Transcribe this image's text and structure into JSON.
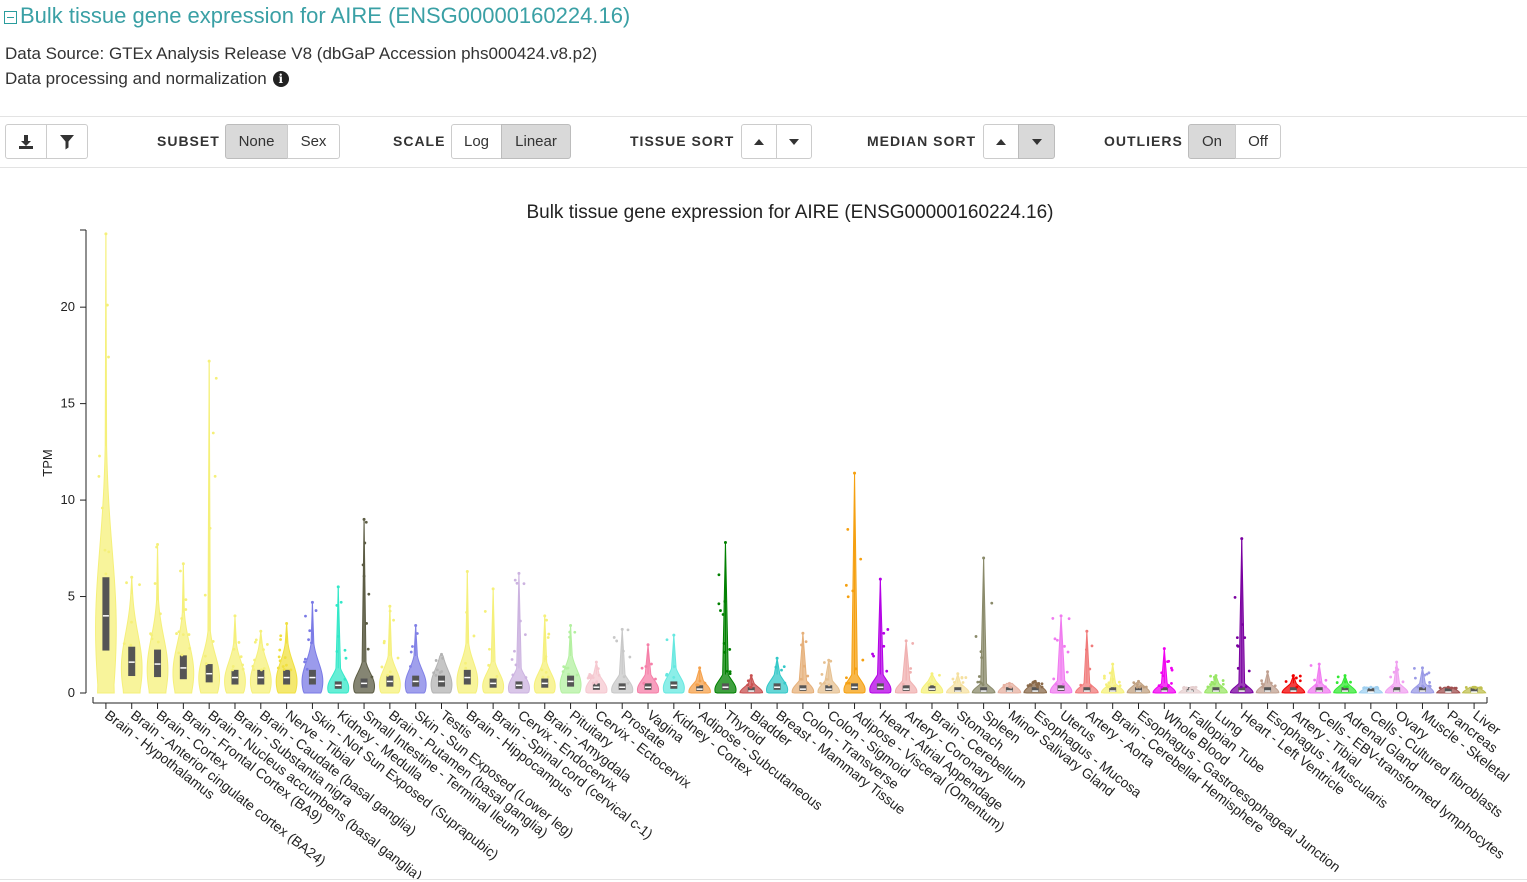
{
  "header": {
    "title": "Bulk tissue gene expression for AIRE (ENSG00000160224.16)",
    "source": "Data Source: GTEx Analysis Release V8 (dbGaP Accession phs000424.v8.p2)",
    "processing": "Data processing and normalization"
  },
  "toolbar": {
    "subset_label": "SUBSET",
    "subset_none": "None",
    "subset_sex": "Sex",
    "scale_label": "SCALE",
    "scale_log": "Log",
    "scale_linear": "Linear",
    "tissue_sort_label": "TISSUE SORT",
    "median_sort_label": "MEDIAN SORT",
    "outliers_label": "OUTLIERS",
    "outliers_on": "On",
    "outliers_off": "Off"
  },
  "chart_data": {
    "type": "violin",
    "title": "Bulk tissue gene expression for AIRE (ENSG00000160224.16)",
    "ylabel": "TPM",
    "ylim": [
      0,
      24
    ],
    "yticks": [
      0,
      5,
      10,
      15,
      20
    ],
    "categories": [
      "Brain - Hypothalamus",
      "Brain - Anterior cingulate cortex (BA24)",
      "Brain - Cortex",
      "Brain - Frontal Cortex (BA9)",
      "Brain - Nucleus accumbens (basal ganglia)",
      "Brain - Substantia nigra",
      "Brain - Caudate (basal ganglia)",
      "Nerve - Tibial",
      "Skin - Not Sun Exposed (Suprapubic)",
      "Kidney - Medulla",
      "Small Intestine - Terminal Ileum",
      "Brain - Putamen (basal ganglia)",
      "Skin - Sun Exposed (Lower leg)",
      "Testis",
      "Brain - Hippocampus",
      "Brain - Spinal cord (cervical c-1)",
      "Cervix - Endocervix",
      "Brain - Amygdala",
      "Pituitary",
      "Cervix - Ectocervix",
      "Prostate",
      "Vagina",
      "Kidney - Cortex",
      "Adipose - Subcutaneous",
      "Thyroid",
      "Bladder",
      "Breast - Mammary Tissue",
      "Colon - Transverse",
      "Colon - Sigmoid",
      "Adipose - Visceral (Omentum)",
      "Heart - Atrial Appendage",
      "Artery - Coronary",
      "Brain - Cerebellum",
      "Stomach",
      "Spleen",
      "Minor Salivary Gland",
      "Esophagus - Mucosa",
      "Uterus",
      "Artery - Aorta",
      "Brain - Cerebellar Hemisphere",
      "Esophagus - Gastroesophageal Junction",
      "Whole Blood",
      "Fallopian Tube",
      "Lung",
      "Heart - Left Ventricle",
      "Esophagus - Muscularis",
      "Artery - Tibial",
      "Cells - EBV-transformed lymphocytes",
      "Adrenal Gland",
      "Cells - Cultured fibroblasts",
      "Ovary",
      "Muscle - Skeletal",
      "Pancreas",
      "Liver"
    ],
    "colors": [
      "#f5f07a",
      "#f5f07a",
      "#f5f07a",
      "#f5f07a",
      "#f5f07a",
      "#f5f07a",
      "#f5f07a",
      "#f0e040",
      "#7a7ae6",
      "#33e8c8",
      "#5c5c44",
      "#f5f07a",
      "#8080e6",
      "#b3b3b3",
      "#f5f07a",
      "#f5f07a",
      "#ccb3e0",
      "#f5f07a",
      "#b3f0a0",
      "#f5c8d0",
      "#c8c8c8",
      "#f57fa8",
      "#66e8e0",
      "#f5a04a",
      "#008000",
      "#c85050",
      "#33c8c8",
      "#e6b07a",
      "#e6c090",
      "#f5a010",
      "#b400e6",
      "#f0b0b0",
      "#f5f07a",
      "#f5e0a0",
      "#8a8a6a",
      "#e6b0a0",
      "#8a6a4a",
      "#f07af0",
      "#f07a7a",
      "#f5f07a",
      "#c0a080",
      "#f000f0",
      "#e6d0d0",
      "#99e666",
      "#7a00a0",
      "#c0a090",
      "#f00000",
      "#f07af0",
      "#33e833",
      "#a0d0f0",
      "#f0a0f0",
      "#9a9ae6",
      "#a05050",
      "#c0c050"
    ],
    "upper": [
      23.8,
      6.0,
      7.7,
      6.7,
      17.2,
      4.0,
      3.2,
      3.6,
      4.7,
      5.5,
      9.0,
      4.5,
      3.5,
      2.0,
      6.3,
      5.4,
      6.2,
      4.0,
      3.5,
      1.6,
      3.3,
      2.5,
      3.0,
      1.3,
      7.8,
      0.9,
      1.8,
      3.1,
      1.7,
      11.4,
      5.9,
      2.7,
      1.0,
      1.0,
      7.0,
      0.5,
      0.6,
      4.0,
      3.2,
      1.5,
      0.6,
      2.3,
      0.2,
      0.9,
      8.0,
      1.1,
      0.9,
      1.5,
      0.9,
      0.3,
      1.6,
      1.3,
      0.3,
      0.3
    ],
    "median": [
      4.0,
      1.6,
      1.5,
      1.3,
      1.0,
      0.8,
      0.8,
      0.8,
      0.8,
      0.4,
      0.5,
      0.6,
      0.6,
      0.6,
      0.8,
      0.5,
      0.4,
      0.5,
      0.6,
      0.3,
      0.3,
      0.3,
      0.4,
      0.2,
      0.3,
      0.1,
      0.3,
      0.2,
      0.2,
      0.3,
      0.3,
      0.2,
      0.2,
      0.1,
      0.1,
      0.1,
      0.1,
      0.2,
      0.1,
      0.1,
      0.1,
      0.1,
      0.1,
      0.1,
      0.1,
      0.1,
      0.1,
      0.1,
      0.1,
      0.05,
      0.1,
      0.1,
      0.05,
      0.05
    ]
  }
}
